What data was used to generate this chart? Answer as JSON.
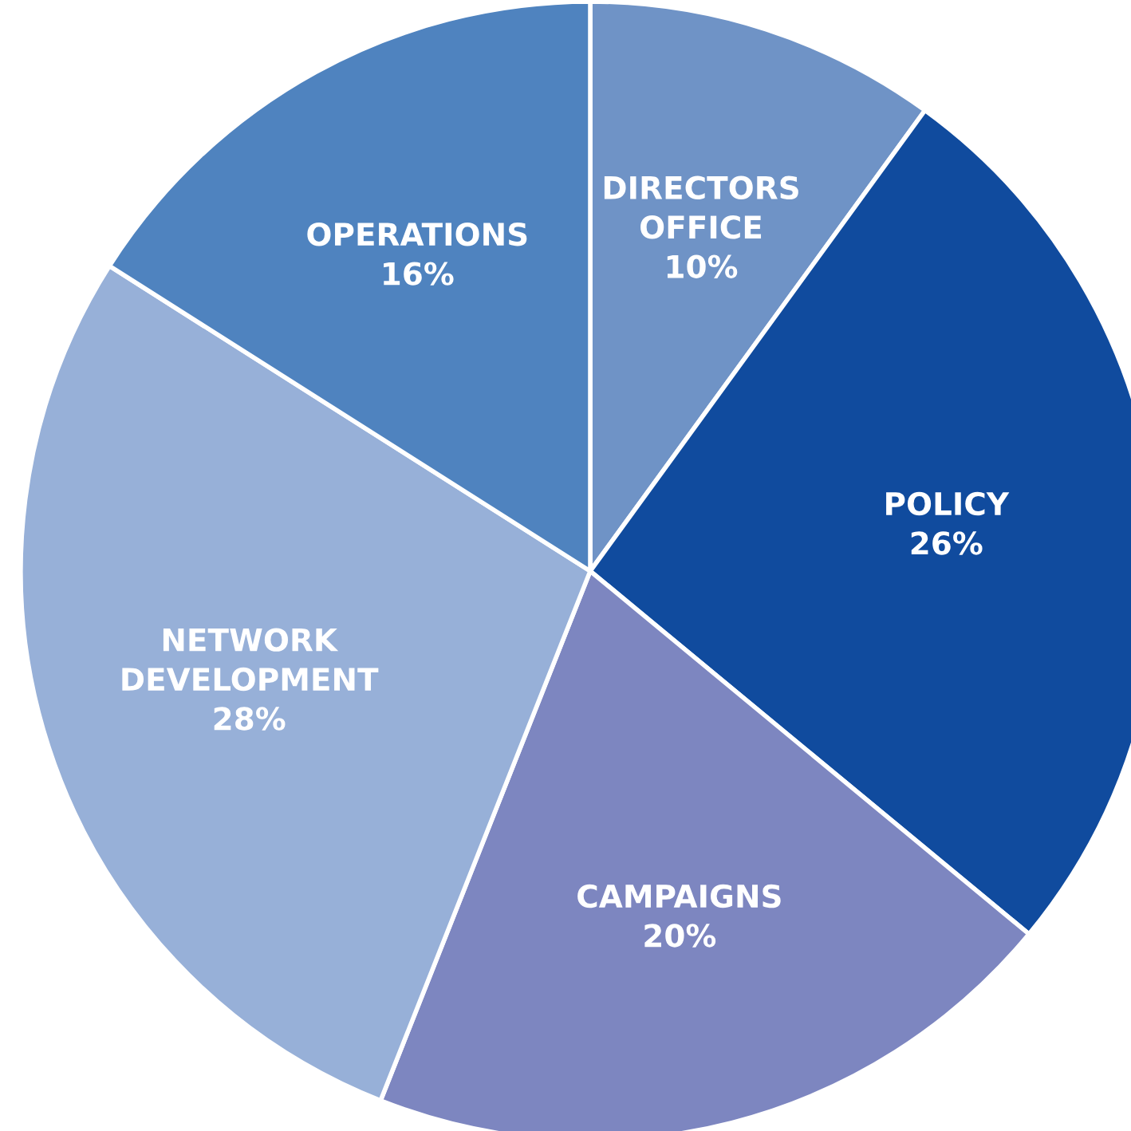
{
  "chart_data": {
    "type": "pie",
    "categories": [
      "DIRECTORS\nOFFICE",
      "POLICY",
      "CAMPAIGNS",
      "NETWORK\nDEVELOPMENT",
      "OPERATIONS"
    ],
    "values": [
      10,
      26,
      20,
      28,
      16
    ],
    "colors": [
      "#6f93c6",
      "#104b9e",
      "#7d86c0",
      "#97b0d8",
      "#4f83bf"
    ],
    "value_labels": [
      "10%",
      "26%",
      "20%",
      "28%",
      "16%"
    ]
  }
}
